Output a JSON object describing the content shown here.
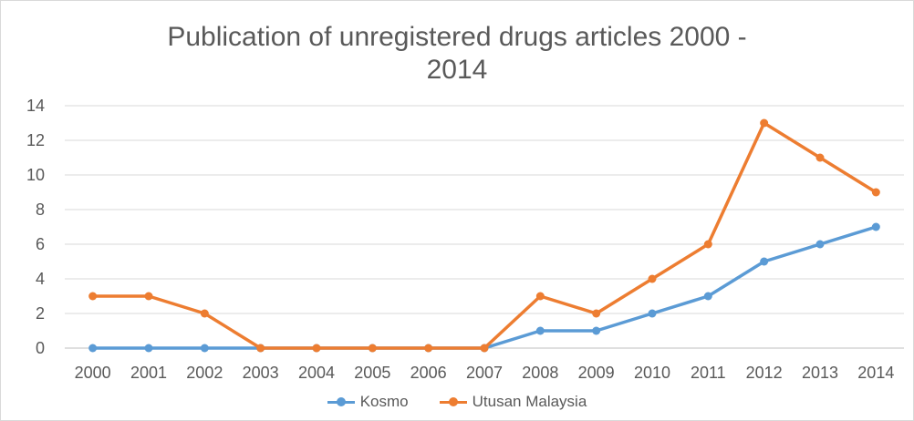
{
  "chart_data": {
    "type": "line",
    "title_lines": [
      "Publication of unregistered drugs articles 2000 -",
      "2014"
    ],
    "xlabel": "",
    "ylabel": "",
    "x": [
      "2000",
      "2001",
      "2002",
      "2003",
      "2004",
      "2005",
      "2006",
      "2007",
      "2008",
      "2009",
      "2010",
      "2011",
      "2012",
      "2013",
      "2014"
    ],
    "ylim": [
      0,
      14
    ],
    "yticks": [
      0,
      2,
      4,
      6,
      8,
      10,
      12,
      14
    ],
    "grid": true,
    "legend_position": "bottom",
    "series": [
      {
        "name": "Kosmo",
        "color": "#5b9bd5",
        "values": [
          0,
          0,
          0,
          0,
          0,
          0,
          0,
          0,
          1,
          1,
          2,
          3,
          5,
          6,
          7
        ]
      },
      {
        "name": "Utusan Malaysia",
        "color": "#ed7d31",
        "values": [
          3,
          3,
          2,
          0,
          0,
          0,
          0,
          0,
          3,
          2,
          4,
          6,
          13,
          11,
          9
        ]
      }
    ]
  }
}
